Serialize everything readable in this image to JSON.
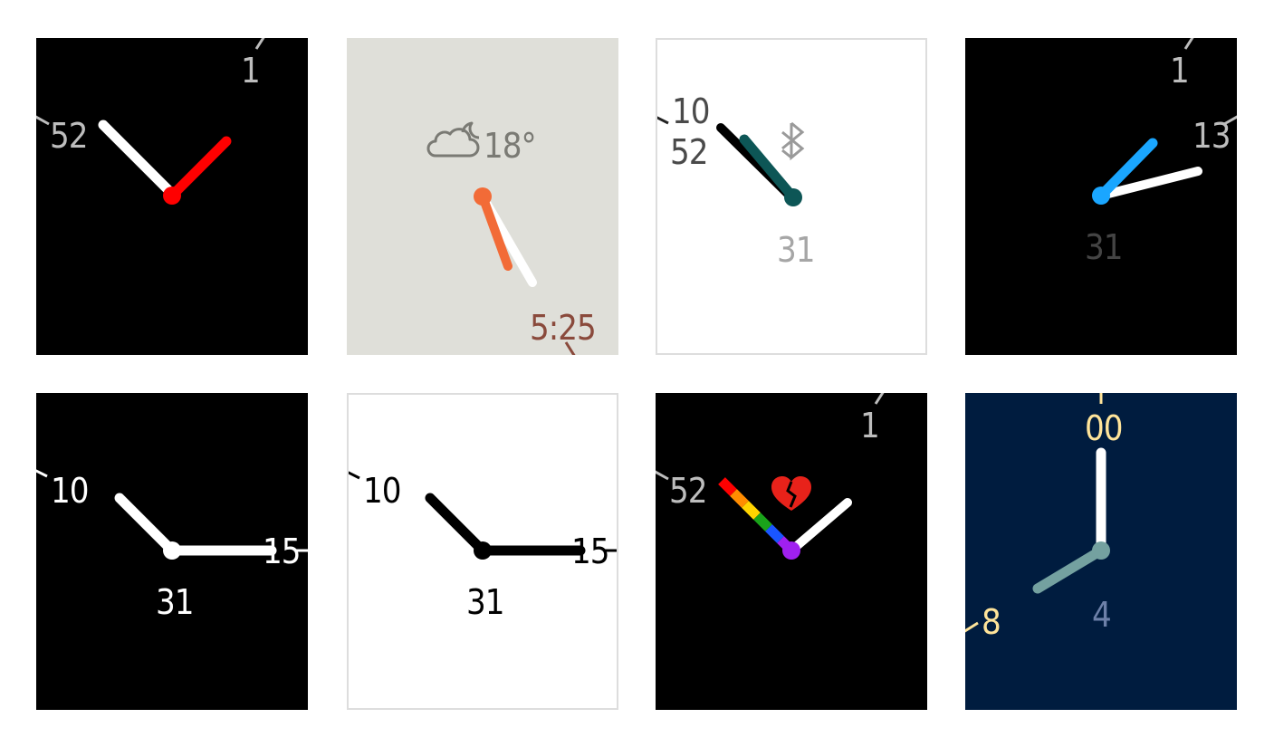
{
  "faces": [
    {
      "id": "face-1",
      "bg": "#000000",
      "numerals": [
        "52",
        "1"
      ],
      "numeral_color": "#bdbdbd",
      "hand_minute_color": "#ffffff",
      "hand_hour_color": "#ff0000",
      "center_color": "#ff0000"
    },
    {
      "id": "face-2",
      "bg": "#dfdfd9",
      "weather_temp": "18°",
      "weather_icon": "partly-cloudy-night-icon",
      "time": "5:25",
      "time_color": "#8a4a3c",
      "hand_color": "#f26b37",
      "second_hand_color": "#ffffff"
    },
    {
      "id": "face-3",
      "bg": "#ffffff",
      "border_color": "#dddddd",
      "hour_numeral": "10",
      "minute_numeral": "52",
      "date": "31",
      "bluetooth_icon": "bluetooth-icon",
      "hand_color": "#0d5656"
    },
    {
      "id": "face-4",
      "bg": "#000000",
      "numerals": [
        "1",
        "13"
      ],
      "date": "31",
      "hand_hour_color": "#1aa6ff",
      "hand_minute_color": "#ffffff"
    },
    {
      "id": "face-5",
      "bg": "#000000",
      "hour_numeral": "10",
      "minute_numeral": "15",
      "date": "31",
      "hand_color": "#ffffff"
    },
    {
      "id": "face-6",
      "bg": "#ffffff",
      "border_color": "#dddddd",
      "hour_numeral": "10",
      "minute_numeral": "15",
      "date": "31",
      "hand_color": "#000000"
    },
    {
      "id": "face-7",
      "bg": "#000000",
      "numerals": [
        "52",
        "1"
      ],
      "heart_icon": "broken-heart-icon",
      "rainbow": [
        "#ff0000",
        "#ff8c00",
        "#ffd400",
        "#1aa31a",
        "#1a56ff",
        "#a020f0"
      ]
    },
    {
      "id": "face-8",
      "bg": "#001c3f",
      "top_numeral": "00",
      "side_numeral": "8",
      "date": "4",
      "numeral_color": "#ffe49a",
      "hour_hand_color": "#74a1a0",
      "minute_hand_color": "#ffffff"
    }
  ]
}
